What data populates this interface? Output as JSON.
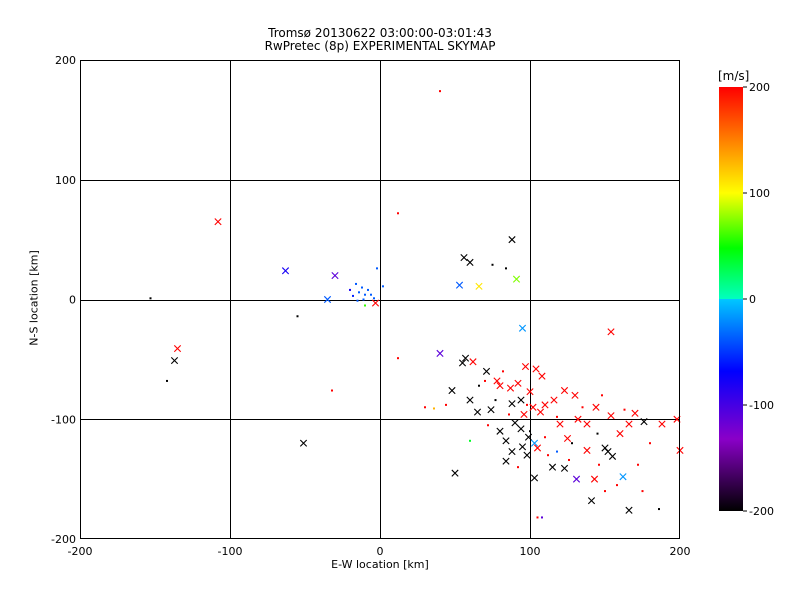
{
  "chart_data": {
    "type": "scatter",
    "title": "Tromsø 20130622 03:00:00-03:01:43",
    "subtitle": "RwPretec (8p) EXPERIMENTAL SKYMAP",
    "xlabel": "E-W location [km]",
    "ylabel": "N-S location [km]",
    "xlim": [
      -200,
      200
    ],
    "ylim": [
      -200,
      200
    ],
    "xticks": [
      "-200",
      "-100",
      "0",
      "100",
      "200"
    ],
    "yticks": [
      "-200",
      "-100",
      "0",
      "100",
      "200"
    ],
    "grid": true,
    "colorbar": {
      "unit": "[m/s]",
      "range": [
        -200,
        200
      ],
      "ticks": [
        "-200",
        "-100",
        "0",
        "100",
        "200"
      ],
      "colormap": [
        "#000000",
        "#8a00c8",
        "#0000ff",
        "#00c8ff",
        "#00ff00",
        "#ffff00",
        "#ff0000"
      ]
    },
    "points_note": "large markers = x symbols, small markers = dots; color encodes velocity",
    "points": [
      {
        "x": -108,
        "y": 65,
        "v": 200,
        "m": "x"
      },
      {
        "x": -63,
        "y": 24,
        "v": -80,
        "m": "x"
      },
      {
        "x": -30,
        "y": 20,
        "v": -110,
        "m": "x"
      },
      {
        "x": -35,
        "y": 0,
        "v": -40,
        "m": "x"
      },
      {
        "x": -153,
        "y": 1,
        "v": -200,
        "m": "."
      },
      {
        "x": -55,
        "y": -14,
        "v": -200,
        "m": "."
      },
      {
        "x": -135,
        "y": -41,
        "v": 200,
        "m": "x"
      },
      {
        "x": -137,
        "y": -51,
        "v": -200,
        "m": "x"
      },
      {
        "x": -142,
        "y": -68,
        "v": -200,
        "m": "."
      },
      {
        "x": -51,
        "y": -120,
        "v": -200,
        "m": "x"
      },
      {
        "x": -32,
        "y": -76,
        "v": 200,
        "m": "."
      },
      {
        "x": 40,
        "y": 174,
        "v": 200,
        "m": "."
      },
      {
        "x": 12,
        "y": 72,
        "v": 200,
        "m": "."
      },
      {
        "x": 88,
        "y": 50,
        "v": -200,
        "m": "x"
      },
      {
        "x": 56,
        "y": 35,
        "v": -200,
        "m": "x"
      },
      {
        "x": 60,
        "y": 31,
        "v": -200,
        "m": "x"
      },
      {
        "x": 75,
        "y": 29,
        "v": -200,
        "m": "."
      },
      {
        "x": 84,
        "y": 26,
        "v": -200,
        "m": "."
      },
      {
        "x": 91,
        "y": 17,
        "v": 75,
        "m": "x"
      },
      {
        "x": 53,
        "y": 12,
        "v": -40,
        "m": "x"
      },
      {
        "x": 66,
        "y": 11,
        "v": 110,
        "m": "x"
      },
      {
        "x": -2,
        "y": 26,
        "v": -40,
        "m": "."
      },
      {
        "x": -16,
        "y": 13,
        "v": -40,
        "m": "."
      },
      {
        "x": -12,
        "y": 10,
        "v": -40,
        "m": "."
      },
      {
        "x": -8,
        "y": 8,
        "v": -40,
        "m": "."
      },
      {
        "x": -6,
        "y": 4,
        "v": -40,
        "m": "."
      },
      {
        "x": -10,
        "y": 4,
        "v": -40,
        "m": "."
      },
      {
        "x": -14,
        "y": 6,
        "v": -40,
        "m": "."
      },
      {
        "x": -18,
        "y": 3,
        "v": -60,
        "m": "."
      },
      {
        "x": -20,
        "y": 8,
        "v": -80,
        "m": "."
      },
      {
        "x": -4,
        "y": 1,
        "v": -40,
        "m": "."
      },
      {
        "x": 2,
        "y": 11,
        "v": -40,
        "m": "."
      },
      {
        "x": -11,
        "y": 0,
        "v": -40,
        "m": "."
      },
      {
        "x": -15,
        "y": -1,
        "v": -40,
        "m": "."
      },
      {
        "x": -3,
        "y": -3,
        "v": 200,
        "m": "x"
      },
      {
        "x": -10,
        "y": -5,
        "v": 60,
        "m": "."
      },
      {
        "x": 12,
        "y": -49,
        "v": 200,
        "m": "."
      },
      {
        "x": 95,
        "y": -24,
        "v": -20,
        "m": "x"
      },
      {
        "x": 154,
        "y": -27,
        "v": 200,
        "m": "x"
      },
      {
        "x": 40,
        "y": -45,
        "v": -110,
        "m": "x"
      },
      {
        "x": 57,
        "y": -49,
        "v": -200,
        "m": "x"
      },
      {
        "x": 55,
        "y": -53,
        "v": -200,
        "m": "x"
      },
      {
        "x": 62,
        "y": -52,
        "v": 200,
        "m": "x"
      },
      {
        "x": 71,
        "y": -60,
        "v": -200,
        "m": "x"
      },
      {
        "x": 78,
        "y": -68,
        "v": 200,
        "m": "x"
      },
      {
        "x": 80,
        "y": -72,
        "v": 200,
        "m": "x"
      },
      {
        "x": 87,
        "y": -74,
        "v": 200,
        "m": "x"
      },
      {
        "x": 92,
        "y": -70,
        "v": 200,
        "m": "x"
      },
      {
        "x": 97,
        "y": -56,
        "v": 200,
        "m": "x"
      },
      {
        "x": 104,
        "y": -58,
        "v": 200,
        "m": "x"
      },
      {
        "x": 108,
        "y": -64,
        "v": 200,
        "m": "x"
      },
      {
        "x": 100,
        "y": -77,
        "v": 200,
        "m": "x"
      },
      {
        "x": 94,
        "y": -84,
        "v": -200,
        "m": "x"
      },
      {
        "x": 88,
        "y": -87,
        "v": -200,
        "m": "x"
      },
      {
        "x": 60,
        "y": -84,
        "v": -200,
        "m": "x"
      },
      {
        "x": 48,
        "y": -76,
        "v": -200,
        "m": "x"
      },
      {
        "x": 65,
        "y": -94,
        "v": -200,
        "m": "x"
      },
      {
        "x": 74,
        "y": -92,
        "v": -200,
        "m": "x"
      },
      {
        "x": 96,
        "y": -96,
        "v": 200,
        "m": "x"
      },
      {
        "x": 102,
        "y": -90,
        "v": 200,
        "m": "x"
      },
      {
        "x": 107,
        "y": -94,
        "v": 200,
        "m": "x"
      },
      {
        "x": 110,
        "y": -88,
        "v": 200,
        "m": "x"
      },
      {
        "x": 90,
        "y": -103,
        "v": -200,
        "m": "x"
      },
      {
        "x": 94,
        "y": -108,
        "v": -200,
        "m": "x"
      },
      {
        "x": 80,
        "y": -110,
        "v": -200,
        "m": "x"
      },
      {
        "x": 84,
        "y": -118,
        "v": -200,
        "m": "x"
      },
      {
        "x": 99,
        "y": -115,
        "v": -200,
        "m": "x"
      },
      {
        "x": 103,
        "y": -120,
        "v": -20,
        "m": "x"
      },
      {
        "x": 95,
        "y": -123,
        "v": -200,
        "m": "x"
      },
      {
        "x": 88,
        "y": -127,
        "v": -200,
        "m": "x"
      },
      {
        "x": 98,
        "y": -130,
        "v": -200,
        "m": "x"
      },
      {
        "x": 105,
        "y": -124,
        "v": 200,
        "m": "x"
      },
      {
        "x": 115,
        "y": -140,
        "v": -200,
        "m": "x"
      },
      {
        "x": 123,
        "y": -141,
        "v": -200,
        "m": "x"
      },
      {
        "x": 131,
        "y": -150,
        "v": -110,
        "m": "x"
      },
      {
        "x": 141,
        "y": -168,
        "v": -200,
        "m": "x"
      },
      {
        "x": 50,
        "y": -145,
        "v": -200,
        "m": "x"
      },
      {
        "x": 84,
        "y": -135,
        "v": -200,
        "m": "x"
      },
      {
        "x": 120,
        "y": -104,
        "v": 200,
        "m": "x"
      },
      {
        "x": 125,
        "y": -116,
        "v": 200,
        "m": "x"
      },
      {
        "x": 132,
        "y": -100,
        "v": 200,
        "m": "x"
      },
      {
        "x": 138,
        "y": -104,
        "v": 200,
        "m": "x"
      },
      {
        "x": 144,
        "y": -90,
        "v": 200,
        "m": "x"
      },
      {
        "x": 130,
        "y": -80,
        "v": 200,
        "m": "x"
      },
      {
        "x": 123,
        "y": -76,
        "v": 200,
        "m": "x"
      },
      {
        "x": 116,
        "y": -84,
        "v": 200,
        "m": "x"
      },
      {
        "x": 154,
        "y": -97,
        "v": 200,
        "m": "x"
      },
      {
        "x": 160,
        "y": -112,
        "v": 200,
        "m": "x"
      },
      {
        "x": 166,
        "y": -104,
        "v": 200,
        "m": "x"
      },
      {
        "x": 170,
        "y": -95,
        "v": 200,
        "m": "x"
      },
      {
        "x": 176,
        "y": -102,
        "v": -200,
        "m": "x"
      },
      {
        "x": 188,
        "y": -104,
        "v": 200,
        "m": "x"
      },
      {
        "x": 198,
        "y": -100,
        "v": 200,
        "m": "x"
      },
      {
        "x": 200,
        "y": -126,
        "v": 200,
        "m": "x"
      },
      {
        "x": 152,
        "y": -127,
        "v": -200,
        "m": "x"
      },
      {
        "x": 155,
        "y": -131,
        "v": -200,
        "m": "x"
      },
      {
        "x": 150,
        "y": -124,
        "v": -200,
        "m": "x"
      },
      {
        "x": 162,
        "y": -148,
        "v": -20,
        "m": "x"
      },
      {
        "x": 166,
        "y": -176,
        "v": -200,
        "m": "x"
      },
      {
        "x": 143,
        "y": -150,
        "v": 200,
        "m": "x"
      },
      {
        "x": 138,
        "y": -126,
        "v": 200,
        "m": "x"
      },
      {
        "x": 103,
        "y": -149,
        "v": -200,
        "m": "x"
      },
      {
        "x": 108,
        "y": -182,
        "v": -110,
        "m": "."
      },
      {
        "x": 105,
        "y": -182,
        "v": 200,
        "m": "."
      },
      {
        "x": 186,
        "y": -175,
        "v": -200,
        "m": "."
      },
      {
        "x": 44,
        "y": -88,
        "v": 200,
        "m": "."
      },
      {
        "x": 36,
        "y": -91,
        "v": 130,
        "m": "."
      },
      {
        "x": 30,
        "y": -90,
        "v": 200,
        "m": "."
      },
      {
        "x": 60,
        "y": -118,
        "v": 40,
        "m": "."
      },
      {
        "x": 72,
        "y": -105,
        "v": 200,
        "m": "."
      },
      {
        "x": 77,
        "y": -84,
        "v": -200,
        "m": "."
      },
      {
        "x": 82,
        "y": -60,
        "v": 200,
        "m": "."
      },
      {
        "x": 118,
        "y": -127,
        "v": -40,
        "m": "."
      },
      {
        "x": 112,
        "y": -130,
        "v": 200,
        "m": "."
      },
      {
        "x": 128,
        "y": -120,
        "v": -200,
        "m": "."
      },
      {
        "x": 146,
        "y": -138,
        "v": 200,
        "m": "."
      },
      {
        "x": 158,
        "y": -155,
        "v": 200,
        "m": "."
      },
      {
        "x": 172,
        "y": -138,
        "v": 200,
        "m": "."
      },
      {
        "x": 180,
        "y": -120,
        "v": 200,
        "m": "."
      },
      {
        "x": 145,
        "y": -112,
        "v": -200,
        "m": "."
      },
      {
        "x": 135,
        "y": -90,
        "v": 200,
        "m": "."
      },
      {
        "x": 148,
        "y": -80,
        "v": 200,
        "m": "."
      },
      {
        "x": 163,
        "y": -92,
        "v": 200,
        "m": "."
      },
      {
        "x": 70,
        "y": -68,
        "v": 200,
        "m": "."
      },
      {
        "x": 66,
        "y": -72,
        "v": -200,
        "m": "."
      },
      {
        "x": 92,
        "y": -140,
        "v": 200,
        "m": "."
      },
      {
        "x": 100,
        "y": -110,
        "v": -200,
        "m": "."
      },
      {
        "x": 110,
        "y": -115,
        "v": 200,
        "m": "."
      },
      {
        "x": 86,
        "y": -96,
        "v": 200,
        "m": "."
      },
      {
        "x": 98,
        "y": -88,
        "v": 200,
        "m": "."
      },
      {
        "x": 118,
        "y": -98,
        "v": 200,
        "m": "."
      },
      {
        "x": 126,
        "y": -134,
        "v": 200,
        "m": "."
      },
      {
        "x": 150,
        "y": -160,
        "v": 200,
        "m": "."
      },
      {
        "x": 175,
        "y": -160,
        "v": 200,
        "m": "."
      }
    ]
  }
}
